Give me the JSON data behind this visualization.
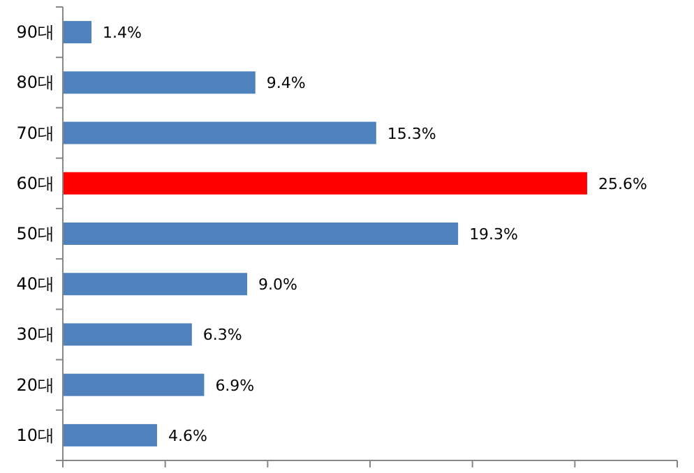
{
  "chart_data": {
    "type": "bar",
    "orientation": "horizontal",
    "categories": [
      "90대",
      "80대",
      "70대",
      "60대",
      "50대",
      "40대",
      "30대",
      "20대",
      "10대"
    ],
    "values": [
      1.4,
      9.4,
      15.3,
      25.6,
      19.3,
      9.0,
      6.3,
      6.9,
      4.6
    ],
    "colors": [
      "#4f81bd",
      "#4f81bd",
      "#4f81bd",
      "#ff0000",
      "#4f81bd",
      "#4f81bd",
      "#4f81bd",
      "#4f81bd",
      "#4f81bd"
    ],
    "value_labels": [
      "1.4%",
      "9.4%",
      "15.3%",
      "25.6%",
      "19.3%",
      "9.0%",
      "6.3%",
      "6.9%",
      "4.6%"
    ],
    "xlim": [
      0,
      30
    ],
    "xticks": [
      {
        "value": 0,
        "label": null
      },
      {
        "value": 5,
        "label": null
      },
      {
        "value": 10,
        "label": null
      },
      {
        "value": 15,
        "label": null
      },
      {
        "value": 20,
        "label": null
      },
      {
        "value": 25,
        "label": null
      },
      {
        "value": 30,
        "label": null
      }
    ],
    "tick_labels": "y"
  }
}
